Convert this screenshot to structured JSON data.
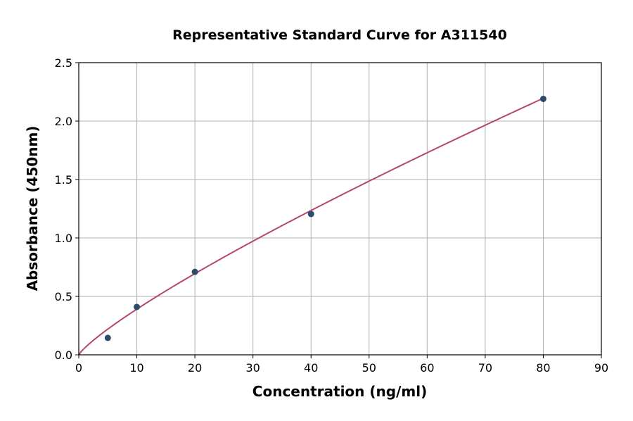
{
  "chart_data": {
    "type": "scatter",
    "title": "Representative Standard Curve for A311540",
    "xlabel": "Concentration (ng/ml)",
    "ylabel": "Absorbance (450nm)",
    "xlim": [
      0,
      90
    ],
    "ylim": [
      0,
      2.5
    ],
    "xticks": [
      "0",
      "10",
      "20",
      "30",
      "40",
      "50",
      "60",
      "70",
      "80",
      "90"
    ],
    "yticks": [
      "0.0",
      "0.5",
      "1.0",
      "1.5",
      "2.0",
      "2.5"
    ],
    "grid": true,
    "points": {
      "x": [
        5,
        10,
        20,
        40,
        80
      ],
      "y": [
        0.145,
        0.41,
        0.71,
        1.205,
        2.19
      ]
    },
    "fit_curve": {
      "type": "power",
      "a": 0.0578,
      "b": 0.83,
      "x_range": [
        0,
        80
      ]
    },
    "colors": {
      "points": "#2e4a6b",
      "curve": "#b5476b",
      "grid": "#b0b0b0"
    }
  }
}
